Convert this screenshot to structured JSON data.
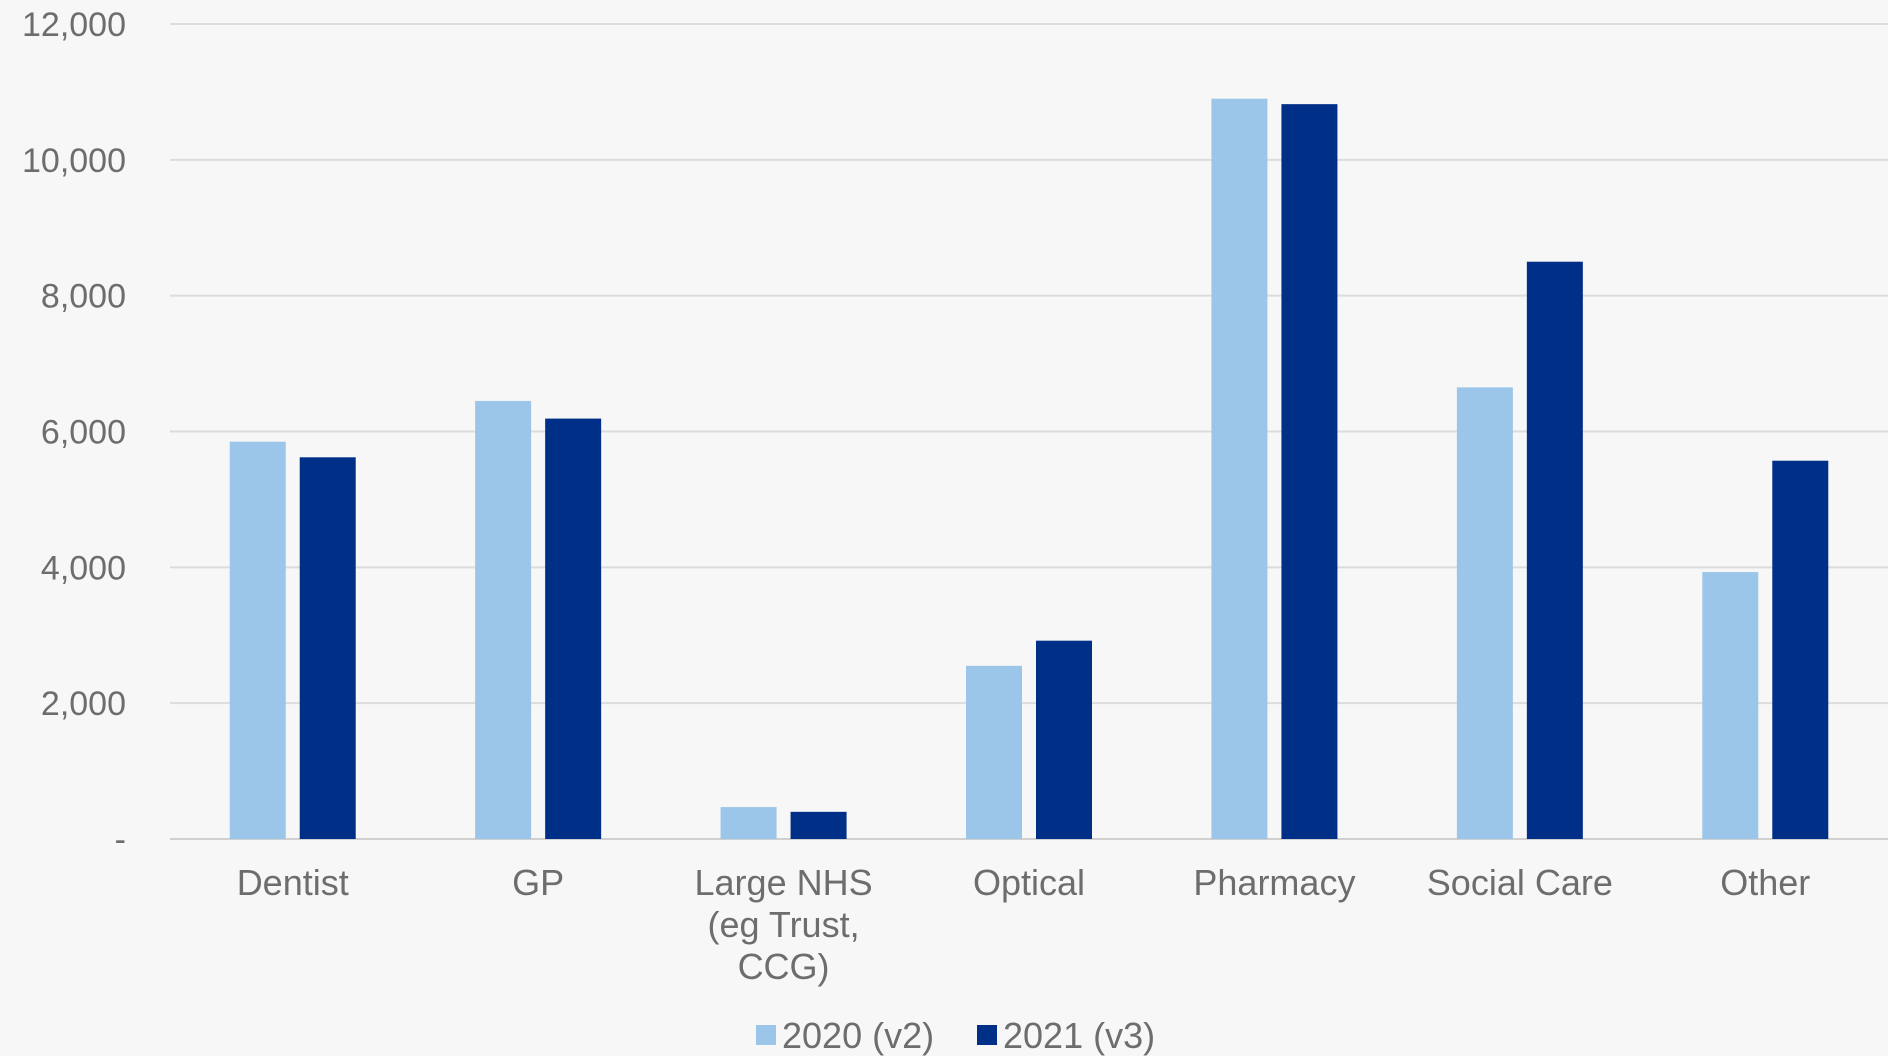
{
  "chart_data": {
    "type": "bar",
    "title": "",
    "xlabel": "",
    "ylabel": "",
    "categories": [
      [
        "Dentist"
      ],
      [
        "GP"
      ],
      [
        "Large NHS",
        "(eg Trust,",
        "CCG)"
      ],
      [
        "Optical"
      ],
      [
        "Pharmacy"
      ],
      [
        "Social Care"
      ],
      [
        "Other"
      ]
    ],
    "series": [
      {
        "name": "2020 (v2)",
        "color": "#9bc6e9",
        "values": [
          5850,
          6450,
          470,
          2550,
          10900,
          6650,
          3930
        ]
      },
      {
        "name": "2021 (v3)",
        "color": "#002f87",
        "values": [
          5620,
          6190,
          400,
          2920,
          10820,
          8500,
          5570
        ]
      }
    ],
    "ylim": [
      0,
      12000
    ],
    "yticks": [
      0,
      2000,
      4000,
      6000,
      8000,
      10000,
      12000
    ],
    "ytick_labels": [
      "-",
      "2,000",
      "4,000",
      "6,000",
      "8,000",
      "10,000",
      "12,000"
    ],
    "grid": true,
    "legend_position": "bottom"
  }
}
